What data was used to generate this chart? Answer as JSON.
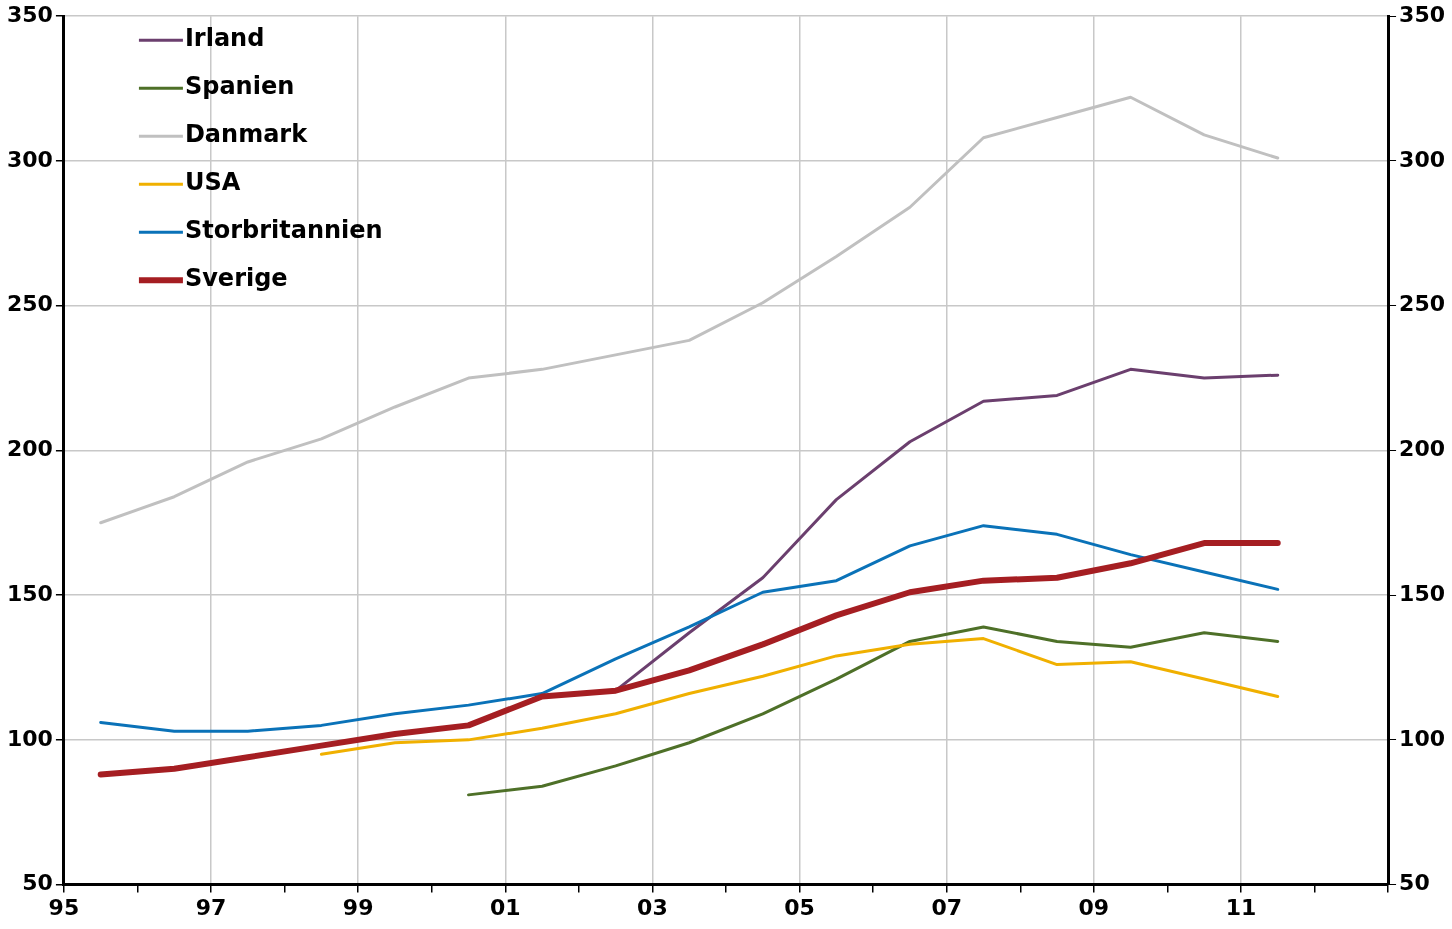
{
  "chart_data": {
    "type": "line",
    "xlim": [
      1995,
      2013
    ],
    "xticks": [
      {
        "value": 1995,
        "label": "95"
      },
      {
        "value": 1996,
        "label": null
      },
      {
        "value": 1997,
        "label": "97"
      },
      {
        "value": 1998,
        "label": null
      },
      {
        "value": 1999,
        "label": "99"
      },
      {
        "value": 2000,
        "label": null
      },
      {
        "value": 2001,
        "label": "01"
      },
      {
        "value": 2002,
        "label": null
      },
      {
        "value": 2003,
        "label": "03"
      },
      {
        "value": 2004,
        "label": null
      },
      {
        "value": 2005,
        "label": "05"
      },
      {
        "value": 2006,
        "label": null
      },
      {
        "value": 2007,
        "label": "07"
      },
      {
        "value": 2008,
        "label": null
      },
      {
        "value": 2009,
        "label": "09"
      },
      {
        "value": 2010,
        "label": null
      },
      {
        "value": 2011,
        "label": "11"
      },
      {
        "value": 2012,
        "label": null
      },
      {
        "value": 2013,
        "label": null
      }
    ],
    "ylim": [
      50,
      350
    ],
    "yticks": [
      50,
      100,
      150,
      200,
      250,
      300,
      350
    ],
    "y2lim": [
      50,
      350
    ],
    "y2ticks": [
      50,
      100,
      150,
      200,
      250,
      300,
      350
    ],
    "grid": true,
    "legend": "top left",
    "marker": "none",
    "line_style": "solid",
    "series": [
      {
        "name": "Irland",
        "color": "#6b3f6e",
        "x": [
          2002.5,
          2003.5,
          2004.5,
          2005.5,
          2006.5,
          2007.5,
          2008.5,
          2009.5,
          2010.5,
          2011.5
        ],
        "values": [
          117,
          137,
          156,
          183,
          203,
          217,
          219,
          228,
          225,
          226
        ]
      },
      {
        "name": "Spanien",
        "color": "#4e7028",
        "x": [
          2000.5,
          2001.5,
          2002.5,
          2003.5,
          2004.5,
          2005.5,
          2006.5,
          2007.5,
          2008.5,
          2009.5,
          2010.5,
          2011.5
        ],
        "values": [
          81,
          84,
          91,
          99,
          109,
          121,
          134,
          139,
          134,
          132,
          137,
          134
        ]
      },
      {
        "name": "Danmark",
        "color": "#c0c0c0",
        "x": [
          1995.5,
          1996.5,
          1997.5,
          1998.5,
          1999.5,
          2000.5,
          2001.5,
          2002.5,
          2003.5,
          2004.5,
          2005.5,
          2006.5,
          2007.5,
          2008.5,
          2009.5,
          2010.5,
          2011.5
        ],
        "values": [
          175,
          184,
          196,
          204,
          215,
          225,
          228,
          233,
          238,
          251,
          267,
          284,
          308,
          315,
          322,
          309,
          301
        ]
      },
      {
        "name": "USA",
        "color": "#f0b000",
        "x": [
          1998.5,
          1999.5,
          2000.5,
          2001.5,
          2002.5,
          2003.5,
          2004.5,
          2005.5,
          2006.5,
          2007.5,
          2008.5,
          2009.5,
          2010.5,
          2011.5
        ],
        "values": [
          95,
          99,
          100,
          104,
          109,
          116,
          122,
          129,
          133,
          135,
          126,
          127,
          121,
          115
        ]
      },
      {
        "name": "Storbritannien",
        "color": "#0a72b8",
        "x": [
          1995.5,
          1996.5,
          1997.5,
          1998.5,
          1999.5,
          2000.5,
          2001.5,
          2002.5,
          2003.5,
          2004.5,
          2005.5,
          2006.5,
          2007.5,
          2008.5,
          2009.5,
          2010.5,
          2011.5
        ],
        "values": [
          106,
          103,
          103,
          105,
          109,
          112,
          116,
          128,
          139,
          151,
          155,
          167,
          174,
          171,
          164,
          158,
          152
        ]
      },
      {
        "name": "Sverige",
        "color": "#a51e22",
        "x": [
          1995.5,
          1996.5,
          1997.5,
          1998.5,
          1999.5,
          2000.5,
          2001.5,
          2002.5,
          2003.5,
          2004.5,
          2005.5,
          2006.5,
          2007.5,
          2008.5,
          2009.5,
          2010.5,
          2011.5
        ],
        "values": [
          88,
          90,
          94,
          98,
          102,
          105,
          115,
          117,
          124,
          133,
          143,
          151,
          155,
          156,
          161,
          168,
          168
        ]
      }
    ]
  }
}
